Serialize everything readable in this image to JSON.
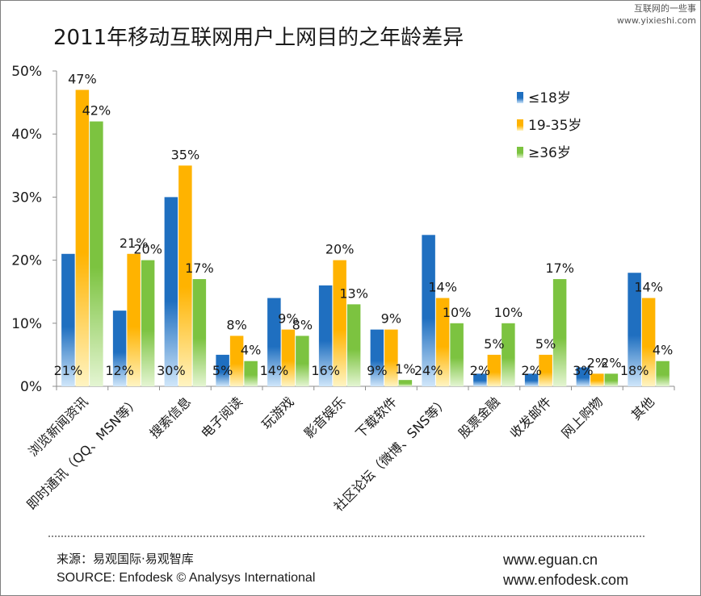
{
  "watermark": {
    "line1": "互联网的一些事",
    "line2": "www.yixieshi.com"
  },
  "chart_data": {
    "type": "bar",
    "title": "2011年移动互联网用户上网目的之年龄差异",
    "xlabel": "",
    "ylabel": "",
    "ylim": [
      0,
      50
    ],
    "yticks": [
      "0%",
      "10%",
      "20%",
      "30%",
      "40%",
      "50%"
    ],
    "categories": [
      "浏览新闻资讯",
      "即时通讯（QQ、MSN等）",
      "搜索信息",
      "电子阅读",
      "玩游戏",
      "影音娱乐",
      "下载软件",
      "社区论坛（微博、SNS等）",
      "股票金融",
      "收发邮件",
      "网上购物",
      "其他"
    ],
    "series": [
      {
        "name": "≤18岁",
        "color": "#1f6fc0",
        "values": [
          21,
          12,
          30,
          5,
          14,
          16,
          9,
          24,
          2,
          2,
          3,
          18
        ],
        "labels": [
          "21%",
          "12%",
          "30%",
          "5%",
          "14%",
          "16%",
          "9%",
          "24%",
          "2%",
          "2%",
          "3%",
          "18%"
        ]
      },
      {
        "name": "19-35岁",
        "color": "#ffb300",
        "values": [
          47,
          21,
          35,
          8,
          9,
          20,
          9,
          14,
          5,
          5,
          2,
          14
        ],
        "labels": [
          "47%",
          "21%",
          "35%",
          "8%",
          "9%",
          "20%",
          "9%",
          "14%",
          "5%",
          "5%",
          "2%",
          "14%"
        ]
      },
      {
        "name": "≥36岁",
        "color": "#7cc340",
        "values": [
          42,
          20,
          17,
          4,
          8,
          13,
          1,
          10,
          10,
          17,
          2,
          4
        ],
        "labels": [
          "42%",
          "20%",
          "17%",
          "4%",
          "8%",
          "13%",
          "1%",
          "10%",
          "10%",
          "17%",
          "2%",
          "4%"
        ]
      }
    ],
    "legend_position": "top-right",
    "grid": false
  },
  "footer": {
    "source_cn": "来源：易观国际·易观智库",
    "source_en": "SOURCE: Enfodesk © Analysys International",
    "url1": "www.eguan.cn",
    "url2": "www.enfodesk.com"
  }
}
